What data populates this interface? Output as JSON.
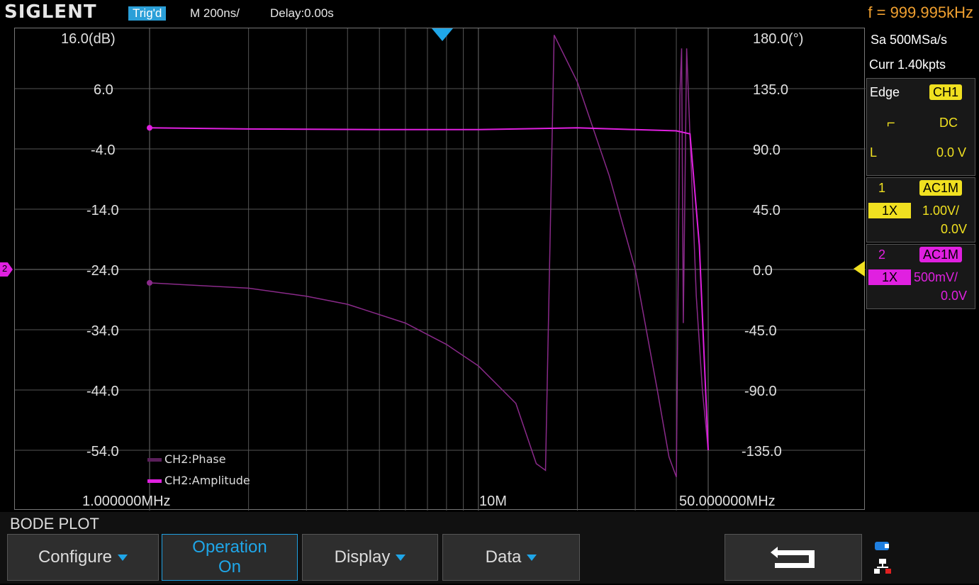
{
  "topbar": {
    "logo": "SIGLENT",
    "trigger_status": "Trig'd",
    "timebase": "M 200ns/",
    "delay": "Delay:0.00s",
    "frequency": "f = 999.995kHz"
  },
  "plot": {
    "left_axis_unit_label": "16.0(dB)",
    "left_ticks": [
      "6.0",
      "-4.0",
      "-14.0",
      "-24.0",
      "-34.0",
      "-44.0",
      "-54.0"
    ],
    "right_axis_unit_label": "180.0(°)",
    "right_ticks": [
      "135.0",
      "90.0",
      "45.0",
      "0.0",
      "-45.0",
      "-90.0",
      "-135.0"
    ],
    "x_start_label": "1.000000MHz",
    "x_mid_label": "10M",
    "x_end_label": "50.000000MHz",
    "legend": [
      {
        "label": "CH2:Phase",
        "color": "#5a1f5a"
      },
      {
        "label": "CH2:Amplitude",
        "color": "#e020e0"
      }
    ],
    "ch2_marker": "2"
  },
  "chart_data": {
    "type": "line",
    "x_scale": "log",
    "xlim": [
      1,
      50
    ],
    "x_unit": "MHz",
    "y_left_lim": [
      -64,
      16
    ],
    "y_right_lim": [
      -180,
      180
    ],
    "series": [
      {
        "name": "CH2:Amplitude",
        "axis": "left",
        "color": "#e020e0",
        "x": [
          1,
          2,
          5,
          10,
          20,
          30,
          40,
          44,
          47,
          50
        ],
        "y": [
          -0.5,
          -0.7,
          -0.8,
          -0.8,
          -0.5,
          -0.8,
          -1.0,
          -1.5,
          -20.0,
          -54.0
        ]
      },
      {
        "name": "CH2:Phase",
        "axis": "right",
        "color": "#8a2a8a",
        "x": [
          1,
          2,
          3,
          4,
          6,
          8,
          10,
          13,
          15,
          16,
          17,
          20,
          25,
          30,
          35,
          38,
          40,
          41,
          41.5,
          42,
          43,
          44,
          45,
          46,
          48,
          50
        ],
        "y": [
          -10,
          -14,
          -20,
          -26,
          -40,
          -56,
          -72,
          -100,
          -145,
          -150,
          175,
          140,
          70,
          0,
          -90,
          -140,
          -155,
          130,
          165,
          -40,
          165,
          100,
          40,
          -20,
          -90,
          -135
        ]
      }
    ]
  },
  "side": {
    "sample_rate": "Sa 500MSa/s",
    "curr_points": "Curr 1.40kpts",
    "trigger_type": "Edge",
    "trigger_source": "CH1",
    "coupling": "DC",
    "level_label": "L",
    "level_value": "0.0 V",
    "ch1": {
      "num": "1",
      "coupling": "AC1M",
      "probe": "1X",
      "scale": "1.00V/",
      "offset": "0.0V"
    },
    "ch2": {
      "num": "2",
      "coupling": "AC1M",
      "probe": "1X",
      "scale": "500mV/",
      "offset": "0.0V"
    }
  },
  "bottom": {
    "title": "BODE PLOT",
    "softkeys": {
      "configure": "Configure",
      "operation_line1": "Operation",
      "operation_line2": "On",
      "display": "Display",
      "data": "Data"
    }
  }
}
